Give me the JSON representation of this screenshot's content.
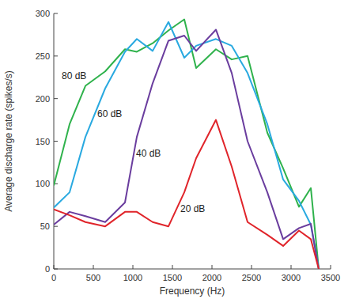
{
  "chart_data": {
    "type": "line",
    "x_label": "Frequency (Hz)",
    "y_label": "Average discharge rate (spikes/s)",
    "x": [
      0,
      200,
      400,
      650,
      900,
      1050,
      1250,
      1450,
      1650,
      1800,
      2050,
      2250,
      2450,
      2700,
      2900,
      3100,
      3250,
      3350
    ],
    "series": [
      {
        "name": "80 dB",
        "color": "#2fb24c",
        "values": [
          98,
          170,
          215,
          232,
          258,
          255,
          265,
          280,
          293,
          236,
          258,
          246,
          250,
          160,
          118,
          73,
          95,
          0
        ]
      },
      {
        "name": "60 dB",
        "color": "#29a9e0",
        "values": [
          72,
          90,
          155,
          212,
          255,
          270,
          256,
          290,
          248,
          262,
          270,
          262,
          230,
          170,
          105,
          80,
          52,
          0
        ]
      },
      {
        "name": "40 dB",
        "color": "#6a3d9e",
        "values": [
          52,
          67,
          62,
          55,
          78,
          155,
          218,
          268,
          274,
          256,
          281,
          230,
          150,
          90,
          35,
          48,
          53,
          0
        ]
      },
      {
        "name": "20 dB",
        "color": "#e0242a",
        "values": [
          70,
          63,
          55,
          50,
          67,
          67,
          55,
          50,
          90,
          130,
          175,
          120,
          55,
          40,
          27,
          45,
          35,
          0
        ]
      }
    ],
    "xlim": [
      0,
      3500
    ],
    "xticks": [
      0,
      500,
      1000,
      1500,
      2000,
      2500,
      3000,
      3500
    ],
    "ylim": [
      0,
      300
    ],
    "yticks": [
      0,
      50,
      100,
      150,
      200,
      250,
      300
    ],
    "grid": false
  }
}
